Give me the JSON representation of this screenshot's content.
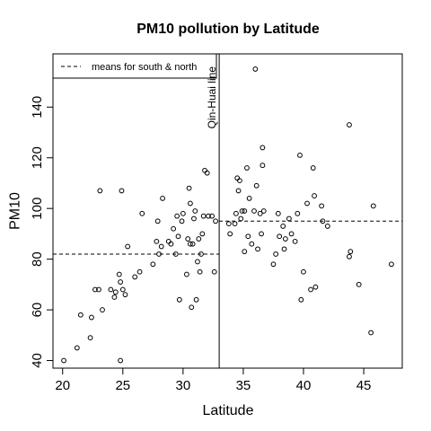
{
  "chart_data": {
    "type": "scatter",
    "title": "PM10 pollution by Latitude",
    "xlabel": "Latitude",
    "ylabel": "PM10",
    "xlim": [
      19.2,
      48.2
    ],
    "ylim": [
      37,
      161
    ],
    "xticks": [
      20,
      25,
      30,
      35,
      40,
      45
    ],
    "yticks": [
      40,
      60,
      80,
      100,
      120,
      140
    ],
    "grid": false,
    "legend": {
      "position": "top-left",
      "label": "means for south & north",
      "line_style": "dashed"
    },
    "vertical_line": {
      "x": 33,
      "label": "Qin-Huai line"
    },
    "mean_lines": [
      {
        "x_from": 19.2,
        "x_to": 33,
        "y": 82
      },
      {
        "x_from": 33,
        "x_to": 48.2,
        "y": 95
      }
    ],
    "points": [
      {
        "x": 20.1,
        "y": 40
      },
      {
        "x": 21.2,
        "y": 45
      },
      {
        "x": 21.5,
        "y": 58
      },
      {
        "x": 22.3,
        "y": 49
      },
      {
        "x": 22.4,
        "y": 57
      },
      {
        "x": 22.7,
        "y": 68
      },
      {
        "x": 23.0,
        "y": 68
      },
      {
        "x": 23.1,
        "y": 107
      },
      {
        "x": 23.3,
        "y": 60
      },
      {
        "x": 24.0,
        "y": 68
      },
      {
        "x": 24.3,
        "y": 65
      },
      {
        "x": 24.4,
        "y": 67
      },
      {
        "x": 24.7,
        "y": 74
      },
      {
        "x": 24.8,
        "y": 71
      },
      {
        "x": 24.8,
        "y": 40
      },
      {
        "x": 24.9,
        "y": 107
      },
      {
        "x": 25.0,
        "y": 68
      },
      {
        "x": 25.2,
        "y": 66
      },
      {
        "x": 25.4,
        "y": 85
      },
      {
        "x": 26.0,
        "y": 73
      },
      {
        "x": 26.4,
        "y": 75
      },
      {
        "x": 26.6,
        "y": 98
      },
      {
        "x": 27.5,
        "y": 78
      },
      {
        "x": 27.8,
        "y": 87
      },
      {
        "x": 27.9,
        "y": 95
      },
      {
        "x": 28.0,
        "y": 82
      },
      {
        "x": 28.2,
        "y": 85
      },
      {
        "x": 28.3,
        "y": 104
      },
      {
        "x": 28.8,
        "y": 87
      },
      {
        "x": 29.0,
        "y": 86
      },
      {
        "x": 29.2,
        "y": 92
      },
      {
        "x": 29.4,
        "y": 82
      },
      {
        "x": 29.5,
        "y": 97
      },
      {
        "x": 29.6,
        "y": 89
      },
      {
        "x": 29.7,
        "y": 64
      },
      {
        "x": 29.9,
        "y": 95
      },
      {
        "x": 30.0,
        "y": 98
      },
      {
        "x": 30.3,
        "y": 74
      },
      {
        "x": 30.4,
        "y": 88
      },
      {
        "x": 30.5,
        "y": 108
      },
      {
        "x": 30.6,
        "y": 102
      },
      {
        "x": 30.6,
        "y": 86
      },
      {
        "x": 30.7,
        "y": 61
      },
      {
        "x": 30.8,
        "y": 86
      },
      {
        "x": 30.9,
        "y": 96
      },
      {
        "x": 31.0,
        "y": 99
      },
      {
        "x": 31.1,
        "y": 64
      },
      {
        "x": 31.2,
        "y": 79
      },
      {
        "x": 31.3,
        "y": 88
      },
      {
        "x": 31.4,
        "y": 75
      },
      {
        "x": 31.5,
        "y": 82
      },
      {
        "x": 31.6,
        "y": 90
      },
      {
        "x": 31.7,
        "y": 97
      },
      {
        "x": 31.8,
        "y": 115
      },
      {
        "x": 32.0,
        "y": 114
      },
      {
        "x": 32.1,
        "y": 97
      },
      {
        "x": 32.4,
        "y": 97
      },
      {
        "x": 32.6,
        "y": 75
      },
      {
        "x": 32.7,
        "y": 95
      },
      {
        "x": 33.8,
        "y": 94
      },
      {
        "x": 33.9,
        "y": 90
      },
      {
        "x": 34.3,
        "y": 94
      },
      {
        "x": 34.4,
        "y": 98
      },
      {
        "x": 34.5,
        "y": 112
      },
      {
        "x": 34.6,
        "y": 107
      },
      {
        "x": 34.7,
        "y": 111
      },
      {
        "x": 34.8,
        "y": 96
      },
      {
        "x": 34.9,
        "y": 99
      },
      {
        "x": 35.1,
        "y": 99
      },
      {
        "x": 35.1,
        "y": 83
      },
      {
        "x": 35.3,
        "y": 116
      },
      {
        "x": 35.4,
        "y": 89
      },
      {
        "x": 35.5,
        "y": 104
      },
      {
        "x": 35.7,
        "y": 86
      },
      {
        "x": 35.9,
        "y": 99
      },
      {
        "x": 36.0,
        "y": 155
      },
      {
        "x": 36.1,
        "y": 109
      },
      {
        "x": 36.2,
        "y": 84
      },
      {
        "x": 36.4,
        "y": 98
      },
      {
        "x": 36.5,
        "y": 90
      },
      {
        "x": 36.6,
        "y": 124
      },
      {
        "x": 36.6,
        "y": 117
      },
      {
        "x": 36.7,
        "y": 99
      },
      {
        "x": 37.5,
        "y": 78
      },
      {
        "x": 37.7,
        "y": 82
      },
      {
        "x": 37.9,
        "y": 98
      },
      {
        "x": 38.0,
        "y": 89
      },
      {
        "x": 38.3,
        "y": 93
      },
      {
        "x": 38.4,
        "y": 84
      },
      {
        "x": 38.5,
        "y": 88
      },
      {
        "x": 38.8,
        "y": 96
      },
      {
        "x": 39.0,
        "y": 90
      },
      {
        "x": 39.3,
        "y": 87
      },
      {
        "x": 39.5,
        "y": 98
      },
      {
        "x": 39.7,
        "y": 121
      },
      {
        "x": 39.8,
        "y": 64
      },
      {
        "x": 40.0,
        "y": 75
      },
      {
        "x": 40.3,
        "y": 102
      },
      {
        "x": 40.6,
        "y": 68
      },
      {
        "x": 40.8,
        "y": 116
      },
      {
        "x": 40.9,
        "y": 105
      },
      {
        "x": 41.0,
        "y": 69
      },
      {
        "x": 41.5,
        "y": 101
      },
      {
        "x": 41.6,
        "y": 95
      },
      {
        "x": 42.0,
        "y": 93
      },
      {
        "x": 43.8,
        "y": 133
      },
      {
        "x": 43.8,
        "y": 81
      },
      {
        "x": 43.9,
        "y": 83
      },
      {
        "x": 44.6,
        "y": 70
      },
      {
        "x": 45.6,
        "y": 51
      },
      {
        "x": 45.8,
        "y": 101
      },
      {
        "x": 47.3,
        "y": 78
      }
    ]
  }
}
